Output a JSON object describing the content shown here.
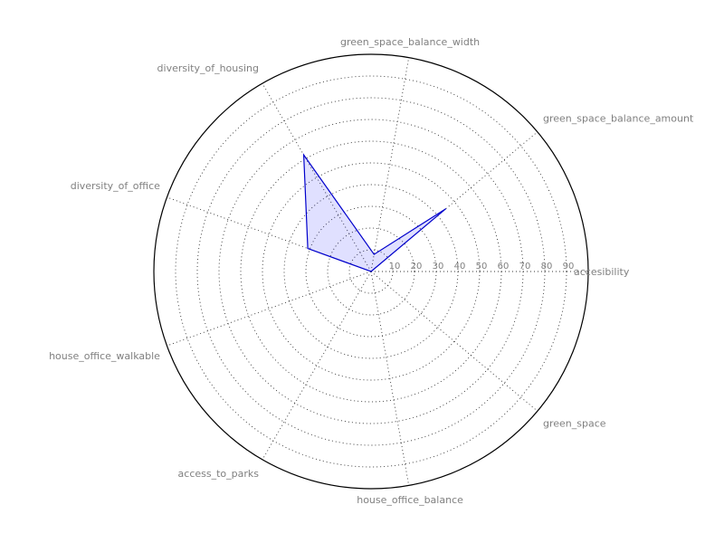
{
  "chart_data": {
    "type": "radar",
    "title": "",
    "colors": {
      "line": "#0000cc",
      "fill": "#0000ff"
    },
    "grid": true,
    "rlim": [
      0,
      100
    ],
    "rticks": [
      10,
      20,
      30,
      40,
      50,
      60,
      70,
      80,
      90
    ],
    "rtick_labels": [
      "10",
      "20",
      "30",
      "40",
      "50",
      "60",
      "70",
      "80",
      "90"
    ],
    "axes": [
      "accesibility",
      "green_space_balance_amount",
      "green_space_balance_width",
      "diversity_of_housing",
      "diversity_of_office",
      "house_office_walkable",
      "access_to_parks",
      "house_office_balance",
      "green_space"
    ],
    "series": [
      {
        "values": [
          0,
          45,
          8,
          62,
          31,
          0,
          0,
          0,
          0
        ]
      }
    ]
  }
}
